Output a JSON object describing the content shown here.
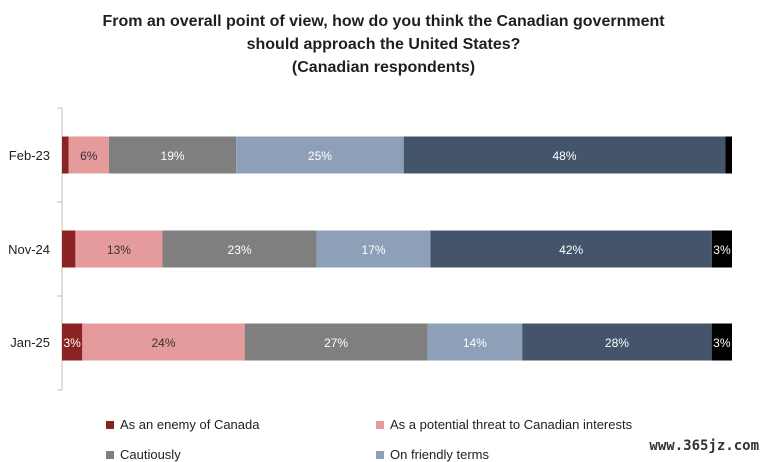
{
  "chart_data": {
    "type": "bar",
    "orientation": "horizontal",
    "stacked": true,
    "title_lines": [
      "From an overall point of view, how do you think the Canadian government",
      "should approach the United States?",
      "(Canadian respondents)"
    ],
    "categories": [
      "Feb-23",
      "Nov-24",
      "Jan-25"
    ],
    "series": [
      {
        "name": "As an enemy of Canada",
        "color": "#8b2323",
        "values": [
          1,
          2,
          3
        ],
        "labels": [
          "",
          "",
          "3%"
        ]
      },
      {
        "name": "As a potential threat to Canadian interests",
        "color": "#e59b9b",
        "values": [
          6,
          13,
          24
        ],
        "labels": [
          "6%",
          "13%",
          "24%"
        ]
      },
      {
        "name": "Cautiously",
        "color": "#7f7f7f",
        "values": [
          19,
          23,
          27
        ],
        "labels": [
          "19%",
          "23%",
          "27%"
        ]
      },
      {
        "name": "On friendly terms",
        "color": "#8ea0b8",
        "values": [
          25,
          17,
          14
        ],
        "labels": [
          "25%",
          "17%",
          "14%"
        ]
      },
      {
        "name": "",
        "color": "#44546a",
        "values": [
          48,
          42,
          28
        ],
        "labels": [
          "48%",
          "42%",
          "28%"
        ]
      },
      {
        "name": "",
        "color": "#000000",
        "values": [
          1,
          3,
          3
        ],
        "labels": [
          "",
          "3%",
          "3%"
        ]
      }
    ],
    "legend_position": "bottom",
    "grid": false
  },
  "legend": [
    {
      "label": "As an enemy of Canada",
      "color": "#8b2323"
    },
    {
      "label": "As a potential threat to Canadian interests",
      "color": "#e59b9b"
    },
    {
      "label": "Cautiously",
      "color": "#7f7f7f"
    },
    {
      "label": "On friendly terms",
      "color": "#8ea0b8"
    }
  ],
  "watermark": "www.365jz.com"
}
